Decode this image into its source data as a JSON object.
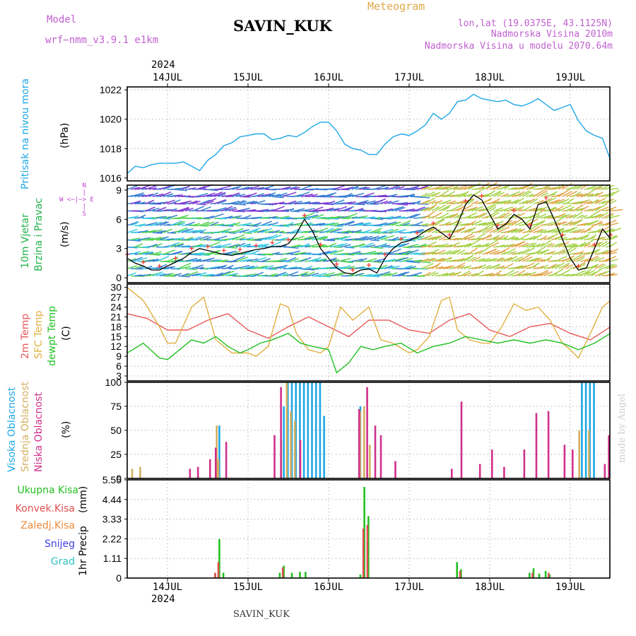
{
  "header": {
    "model_label": "Model",
    "model_name": "wrf−nmm_v3.9.1  e1km",
    "station": "SAVIN_KUK",
    "product": "Meteogram",
    "lonlat": "lon,lat (19.0375E, 43.1125N)",
    "elevation": "Nadmorska Visina 2010m",
    "model_elevation": "Nadmorska Visina u modelu 2070.64m"
  },
  "footer": {
    "station": "SAVIN_KUK",
    "credit": "made by Angel"
  },
  "colors": {
    "pressure": "#1fa7e6",
    "wind_label": "#22b34a",
    "wind_rose": "#c040d0",
    "t2m": "#e85858",
    "tsfc": "#e0b040",
    "dewpt": "#22c022",
    "cloud_high": "#1fa7e6",
    "cloud_mid": "#d4b060",
    "cloud_low": "#d0308a",
    "precip_total": "#22c022",
    "precip_conv": "#e05050",
    "precip_frozen": "#f08a3a",
    "snow": "#4040e0",
    "hail": "#30c0c0",
    "credit": "#d0d0d0",
    "header_text": "#c060d0"
  },
  "time_axis": {
    "year": "2024",
    "days": [
      "14JUL",
      "15JUL",
      "16JUL",
      "17JUL",
      "18JUL",
      "19JUL"
    ]
  },
  "chart_data": [
    {
      "type": "line",
      "panel": "pressure",
      "ylabel": "Pritisak na nivou mora",
      "unit": "(hPa)",
      "ylim": [
        1015.8,
        1022.2
      ],
      "yticks": [
        1016,
        1018,
        1020,
        1022
      ],
      "grid": true,
      "series": [
        {
          "name": "Pritisak na nivou mora",
          "color": "#1fa7e6",
          "x": [
            -0.5,
            -0.4,
            -0.3,
            -0.2,
            -0.1,
            0,
            0.1,
            0.2,
            0.3,
            0.4,
            0.5,
            0.6,
            0.7,
            0.8,
            0.9,
            1.0,
            1.1,
            1.2,
            1.3,
            1.4,
            1.5,
            1.6,
            1.7,
            1.8,
            1.9,
            2.0,
            2.1,
            2.2,
            2.3,
            2.4,
            2.5,
            2.6,
            2.7,
            2.8,
            2.9,
            3.0,
            3.1,
            3.2,
            3.3,
            3.4,
            3.5,
            3.6,
            3.7,
            3.8,
            3.9,
            4.0,
            4.1,
            4.2,
            4.3,
            4.4,
            4.5,
            4.6,
            4.7,
            4.8,
            4.9,
            5.0,
            5.1,
            5.2,
            5.3,
            5.4,
            5.5
          ],
          "y": [
            1016.3,
            1016.8,
            1016.7,
            1016.9,
            1017.0,
            1017.0,
            1017.0,
            1017.1,
            1016.8,
            1016.5,
            1017.2,
            1017.6,
            1018.2,
            1018.4,
            1018.8,
            1018.9,
            1019.0,
            1019.0,
            1018.6,
            1018.7,
            1018.9,
            1018.8,
            1019.1,
            1019.5,
            1019.8,
            1019.8,
            1019.2,
            1018.3,
            1018.0,
            1017.9,
            1017.6,
            1017.6,
            1018.3,
            1018.8,
            1019.0,
            1018.9,
            1019.2,
            1019.6,
            1020.4,
            1020.0,
            1020.4,
            1021.2,
            1021.3,
            1021.7,
            1021.4,
            1021.3,
            1021.2,
            1021.3,
            1021.0,
            1020.9,
            1021.1,
            1021.4,
            1021.0,
            1020.6,
            1020.8,
            1021.0,
            1019.9,
            1019.2,
            1018.9,
            1018.7,
            1017.2
          ]
        }
      ]
    },
    {
      "type": "line",
      "panel": "wind",
      "ylabel": "10m Vjetar Brzina i Pravac",
      "unit": "(m/s)",
      "rose_label": "W <−|−> E, α<−|−>N",
      "ylim": [
        -0.5,
        9.5
      ],
      "yticks": [
        0,
        3,
        6,
        9
      ],
      "grid": false,
      "series": [
        {
          "name": "Brzina",
          "color": "#000000",
          "x": [
            -0.5,
            -0.4,
            -0.3,
            -0.2,
            -0.1,
            0,
            0.1,
            0.2,
            0.3,
            0.4,
            0.5,
            0.6,
            0.7,
            0.8,
            0.9,
            1.0,
            1.1,
            1.2,
            1.3,
            1.4,
            1.5,
            1.6,
            1.7,
            1.8,
            1.9,
            2.0,
            2.1,
            2.2,
            2.3,
            2.4,
            2.5,
            2.6,
            2.7,
            2.8,
            2.9,
            3.0,
            3.1,
            3.2,
            3.3,
            3.4,
            3.5,
            3.6,
            3.7,
            3.8,
            3.9,
            4.0,
            4.1,
            4.2,
            4.3,
            4.4,
            4.5,
            4.6,
            4.7,
            4.8,
            4.9,
            5.0,
            5.1,
            5.2,
            5.3,
            5.4,
            5.5
          ],
          "y": [
            2.0,
            1.5,
            1.2,
            0.8,
            0.8,
            1.2,
            1.6,
            2.0,
            2.6,
            3.0,
            2.8,
            2.6,
            2.4,
            2.3,
            2.5,
            2.7,
            2.9,
            3.0,
            3.2,
            3.2,
            3.5,
            4.5,
            6.0,
            4.8,
            3.0,
            2.0,
            1.0,
            0.5,
            0.4,
            0.8,
            0.9,
            0.5,
            2.0,
            3.0,
            3.6,
            3.8,
            4.2,
            4.8,
            5.2,
            4.6,
            4.0,
            5.5,
            7.5,
            8.5,
            8.0,
            6.5,
            5.0,
            5.5,
            6.5,
            6.0,
            5.0,
            7.5,
            7.8,
            6.0,
            4.0,
            2.0,
            0.8,
            1.0,
            3.0,
            5.0,
            4.0
          ]
        }
      ]
    },
    {
      "type": "line",
      "panel": "temperature",
      "ylabel": "2m Temp, SFC Temp, dewpt Temp",
      "unit": "(C)",
      "ylim": [
        1.5,
        31
      ],
      "yticks": [
        3,
        6,
        9,
        12,
        15,
        18,
        21,
        24,
        27,
        30
      ],
      "grid": true,
      "series": [
        {
          "name": "2m Temp",
          "color": "#e85858",
          "x": [
            -0.5,
            -0.25,
            0,
            0.25,
            0.5,
            0.75,
            1.0,
            1.25,
            1.5,
            1.75,
            2.0,
            2.25,
            2.5,
            2.75,
            3.0,
            3.25,
            3.5,
            3.75,
            4.0,
            4.25,
            4.5,
            4.75,
            5.0,
            5.25,
            5.5
          ],
          "y": [
            22,
            20.5,
            17,
            17,
            20,
            22,
            17,
            14.5,
            18,
            21,
            18,
            15,
            20,
            20,
            17,
            16,
            20,
            22,
            17,
            15,
            18,
            19,
            16,
            14,
            18
          ]
        },
        {
          "name": "SFC Temp",
          "color": "#e0b040",
          "x": [
            -0.5,
            -0.3,
            -0.1,
            0,
            0.1,
            0.3,
            0.45,
            0.6,
            0.8,
            1.0,
            1.1,
            1.25,
            1.4,
            1.5,
            1.6,
            1.75,
            1.9,
            2.0,
            2.15,
            2.3,
            2.5,
            2.65,
            2.8,
            3.0,
            3.1,
            3.25,
            3.4,
            3.5,
            3.6,
            3.75,
            3.9,
            4.0,
            4.15,
            4.3,
            4.45,
            4.6,
            4.75,
            4.9,
            5.0,
            5.1,
            5.25,
            5.4,
            5.5
          ],
          "y": [
            30,
            26,
            18,
            13,
            13,
            24,
            27,
            14,
            10,
            10,
            9,
            12,
            25,
            24,
            16,
            11,
            10,
            12,
            24,
            20,
            24,
            14,
            13,
            10,
            11,
            15,
            26,
            27,
            17,
            14,
            13,
            13,
            18,
            25,
            23,
            24,
            20,
            13,
            11,
            8.5,
            16,
            24,
            26
          ]
        },
        {
          "name": "dewpt Temp",
          "color": "#22c022",
          "x": [
            -0.5,
            -0.3,
            -0.1,
            0,
            0.15,
            0.3,
            0.45,
            0.6,
            0.75,
            0.9,
            1.0,
            1.15,
            1.3,
            1.5,
            1.65,
            1.8,
            2.0,
            2.1,
            2.25,
            2.4,
            2.55,
            2.7,
            2.9,
            3.1,
            3.3,
            3.5,
            3.7,
            3.9,
            4.1,
            4.3,
            4.5,
            4.7,
            4.9,
            5.0,
            5.1,
            5.3,
            5.5
          ],
          "y": [
            10,
            13,
            8.5,
            8,
            11,
            14,
            13,
            15,
            12,
            10,
            11,
            13,
            14,
            16,
            13,
            12,
            11,
            4,
            7,
            12,
            11,
            12,
            13,
            10,
            12,
            13,
            15,
            14,
            13,
            14,
            13,
            14,
            13,
            12,
            11,
            13,
            16
          ]
        }
      ]
    },
    {
      "type": "bar",
      "panel": "clouds",
      "ylabel": "Visoka Oblacnost, Srednja Oblacnost, Niska Oblacnost",
      "unit": "(%)",
      "ylim": [
        0,
        100
      ],
      "yticks": [
        0,
        25,
        50,
        75,
        100
      ],
      "grid": true,
      "series": [
        {
          "name": "Visoka Oblacnost",
          "color": "#1fa7e6",
          "x": [
            0.65,
            1.45,
            1.5,
            1.55,
            1.6,
            1.65,
            1.7,
            1.75,
            1.8,
            1.85,
            1.9,
            1.95,
            2.4,
            5.15,
            5.2,
            5.25,
            5.3
          ],
          "y": [
            55,
            75,
            100,
            100,
            100,
            100,
            100,
            100,
            100,
            100,
            100,
            65,
            75,
            100,
            100,
            100,
            100
          ]
        },
        {
          "name": "Srednja Oblacnost",
          "color": "#d4b060",
          "x": [
            -0.45,
            -0.35,
            0.6,
            0.62,
            1.4,
            1.47,
            1.52,
            1.57,
            2.38,
            2.43,
            2.5,
            5.1,
            5.22
          ],
          "y": [
            10,
            12,
            55,
            20,
            40,
            100,
            70,
            60,
            70,
            75,
            35,
            50,
            50
          ]
        },
        {
          "name": "Niska Oblacnost",
          "color": "#d0308a",
          "x": [
            0.25,
            0.35,
            0.5,
            0.57,
            0.7,
            1.3,
            1.38,
            1.62,
            2.35,
            2.45,
            2.55,
            2.62,
            2.8,
            3.5,
            3.62,
            3.85,
            4.0,
            4.15,
            4.4,
            4.55,
            4.7,
            4.9,
            5.0,
            5.4,
            5.45
          ],
          "y": [
            10,
            12,
            20,
            32,
            38,
            45,
            95,
            40,
            72,
            95,
            55,
            45,
            18,
            10,
            80,
            15,
            30,
            12,
            30,
            68,
            70,
            35,
            30,
            15,
            45
          ]
        }
      ]
    },
    {
      "type": "bar",
      "panel": "precipitation",
      "ylabel": "1hr Precip",
      "unit": "(mm)",
      "ylim": [
        0,
        5.55
      ],
      "yticks": [
        0,
        1.11,
        2.22,
        3.33,
        4.44,
        5.55
      ],
      "grid": true,
      "legend": [
        "Ukupna Kisa",
        "Konvek.Kisa",
        "Zaledj.Kisa",
        "Snijeg",
        "Grad"
      ],
      "series": [
        {
          "name": "Ukupna Kisa",
          "color": "#22c022",
          "x": [
            0.6,
            0.65,
            0.7,
            1.4,
            1.45,
            1.55,
            1.65,
            1.72,
            2.4,
            2.45,
            2.5,
            3.6,
            3.65,
            4.5,
            4.55,
            4.62,
            4.7,
            4.75
          ],
          "y": [
            0.2,
            2.2,
            0.3,
            0.3,
            0.7,
            0.3,
            0.35,
            0.35,
            0.2,
            5.15,
            3.5,
            0.9,
            0.5,
            0.3,
            0.55,
            0.25,
            0.4,
            0.2
          ]
        },
        {
          "name": "Konvek.Kisa",
          "color": "#e05050",
          "x": [
            0.58,
            0.62,
            1.42,
            2.42,
            2.47,
            3.62,
            4.52,
            4.72
          ],
          "y": [
            0.3,
            0.9,
            0.6,
            2.8,
            3.0,
            0.4,
            0.3,
            0.3
          ]
        }
      ]
    }
  ]
}
